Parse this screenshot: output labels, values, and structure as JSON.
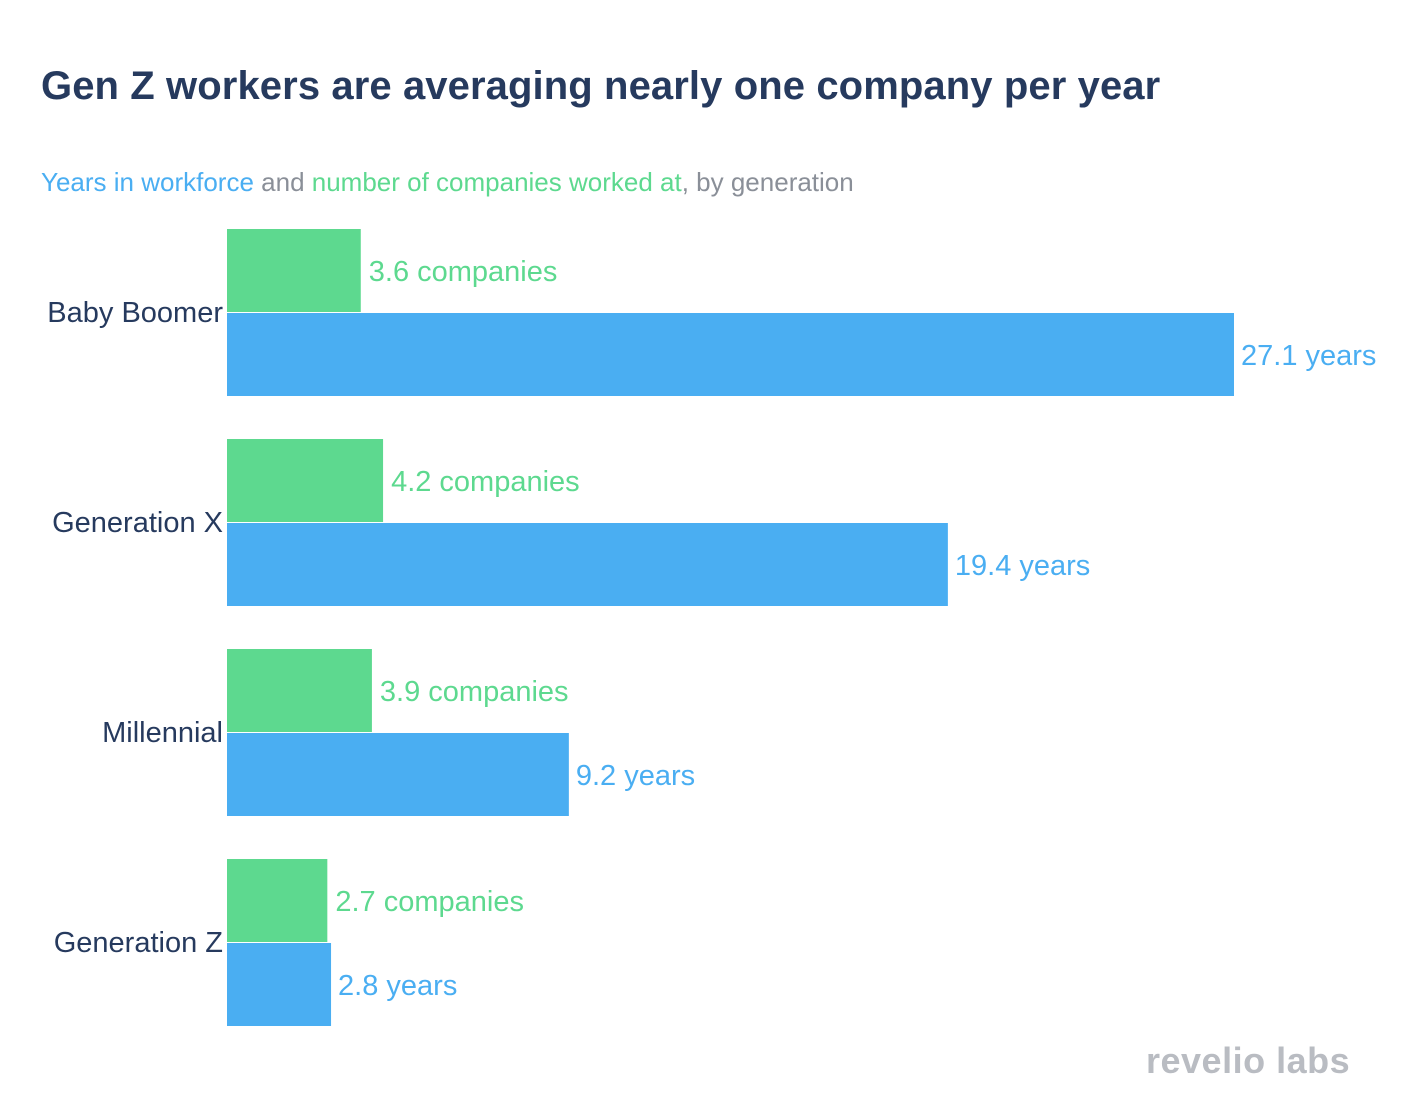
{
  "title": "Gen Z workers are averaging nearly one company per year",
  "subtitle": {
    "part1": "Years in workforce",
    "part2": " and ",
    "part3": "number of companies worked at",
    "part4": ", by generation"
  },
  "logo_text": "revelio labs",
  "colors": {
    "years": "#4aaef2",
    "companies": "#5dd98f",
    "category_text": "#263a5e",
    "title": "#263a5e",
    "subtitle_gray": "#8a8f98",
    "logo": "#b9bcc2"
  },
  "chart_data": {
    "type": "bar",
    "orientation": "horizontal",
    "title": "Gen Z workers are averaging nearly one company per year",
    "categories": [
      "Baby Boomer",
      "Generation X",
      "Millennial",
      "Generation Z"
    ],
    "series": [
      {
        "name": "number of companies worked at",
        "values": [
          3.6,
          4.2,
          3.9,
          2.7
        ],
        "labels": [
          "3.6 companies",
          "4.2 companies",
          "3.9 companies",
          "2.7 companies"
        ]
      },
      {
        "name": "Years in workforce",
        "values": [
          27.1,
          19.4,
          9.2,
          2.8
        ],
        "labels": [
          "27.1 years",
          "19.4 years",
          "9.2 years",
          "2.8 years"
        ]
      }
    ],
    "xlim": [
      0,
      27.1
    ],
    "grid": false,
    "legend": "none"
  }
}
